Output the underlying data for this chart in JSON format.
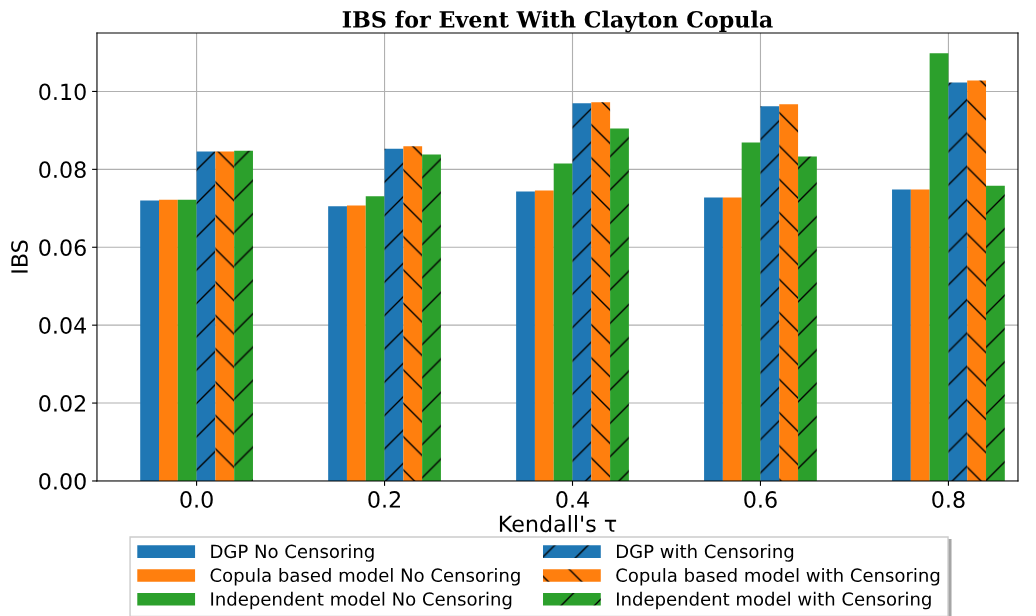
{
  "chart_data": {
    "type": "bar",
    "title": "IBS for Event With Clayton Copula",
    "xlabel": "Kendall's τ",
    "ylabel": "IBS",
    "categories": [
      "0.0",
      "0.2",
      "0.4",
      "0.6",
      "0.8"
    ],
    "series": [
      {
        "name": "DGP No Censoring",
        "color": "#1f77b4",
        "values": [
          0.072,
          0.0705,
          0.0743,
          0.0728,
          0.0748
        ]
      },
      {
        "name": "Copula based model No Censoring",
        "color": "#ff7f0e",
        "values": [
          0.0722,
          0.0707,
          0.0746,
          0.0728,
          0.0748
        ]
      },
      {
        "name": "Independent model No Censoring",
        "color": "#2ca02c",
        "values": [
          0.0722,
          0.0731,
          0.0815,
          0.0869,
          0.1098
        ]
      },
      {
        "name": "DGP with Censoring",
        "color": "#1f77b4",
        "values": [
          0.0846,
          0.0853,
          0.097,
          0.0962,
          0.1023
        ]
      },
      {
        "name": "Copula based model with Censoring",
        "color": "#ff7f0e",
        "values": [
          0.0846,
          0.0859,
          0.0972,
          0.0967,
          0.1028
        ]
      },
      {
        "name": "Independent model with Censoring",
        "color": "#2ca02c",
        "values": [
          0.0848,
          0.0838,
          0.0905,
          0.0833,
          0.0758
        ]
      }
    ],
    "ylim": [
      0,
      0.115
    ],
    "yticks": [
      {
        "value": 0,
        "label": "0.00"
      },
      {
        "value": 0.02,
        "label": "0.02"
      },
      {
        "value": 0.04,
        "label": "0.04"
      },
      {
        "value": 0.06,
        "label": "0.06"
      },
      {
        "value": 0.08,
        "label": "0.08"
      },
      {
        "value": 0.1,
        "label": "0.10"
      }
    ],
    "grid": true,
    "legend": "bottom"
  }
}
